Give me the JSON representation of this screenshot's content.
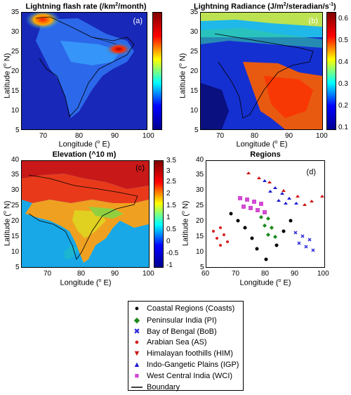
{
  "chart_data": [
    {
      "type": "heatmap",
      "title_main": "Lightning flash rate (/km",
      "title_sup": "2",
      "title_end": "/month)",
      "panel_label": "(a)",
      "xlabel": "Longitude (",
      "xlabel_sup": "o",
      "xlabel_end": " E)",
      "ylabel": "Latitude (",
      "ylabel_sup": "o",
      "ylabel_end": " N)",
      "xlim": [
        65,
        100
      ],
      "ylim": [
        5,
        35
      ],
      "xticks": [
        "70",
        "80",
        "90",
        "100"
      ],
      "yticks": [
        "5",
        "10",
        "15",
        "20",
        "25",
        "30",
        "35"
      ],
      "colorbar_ticks": [],
      "colormap": "jet"
    },
    {
      "type": "heatmap",
      "title_main": "Lightning Radiance (J/m",
      "title_sup": "2",
      "title_end": "/steradian/s",
      "title_sup2": "-1",
      "title_end2": ")",
      "panel_label": "(b)",
      "xlabel": "Longitude (",
      "xlabel_sup": "o",
      "xlabel_end": " E)",
      "ylabel": "Latitude (",
      "ylabel_sup": "o",
      "ylabel_end": " N)",
      "xlim": [
        65,
        100
      ],
      "ylim": [
        5,
        35
      ],
      "xticks": [
        "70",
        "80",
        "90",
        "100"
      ],
      "yticks": [
        "5",
        "10",
        "15",
        "20",
        "25",
        "30",
        "35"
      ],
      "colorbar_ticks": [
        "0.1",
        "0.2",
        "0.3",
        "0.4",
        "0.5",
        "0.6"
      ],
      "colormap": "jet"
    },
    {
      "type": "heatmap",
      "title_main": "Elevation (^10 m)",
      "panel_label": "(c)",
      "xlabel": "Longitude (",
      "xlabel_sup": "o",
      "xlabel_end": " E)",
      "ylabel": "Latitude (",
      "ylabel_sup": "o",
      "ylabel_end": " N)",
      "xlim": [
        62,
        100
      ],
      "ylim": [
        5,
        40
      ],
      "xticks": [
        "70",
        "80",
        "90",
        "100"
      ],
      "yticks": [
        "5",
        "10",
        "15",
        "20",
        "25",
        "30",
        "35",
        "40"
      ],
      "colorbar_ticks": [
        "-1",
        "-0.5",
        "0",
        "0.5",
        "1",
        "1.5",
        "2",
        "2.5",
        "3",
        "3.5"
      ],
      "colormap": "jet"
    },
    {
      "type": "scatter",
      "title_main": "Regions",
      "panel_label": "(d)",
      "xlabel": "Longitude (",
      "xlabel_sup": "o",
      "xlabel_end": " E)",
      "ylabel": "Latitude (",
      "ylabel_sup": "o",
      "ylabel_end": " N)",
      "xlim": [
        60,
        100
      ],
      "ylim": [
        5,
        40
      ],
      "xticks": [
        "60",
        "70",
        "80",
        "90",
        "100"
      ],
      "yticks": [
        "5",
        "10",
        "15",
        "20",
        "25",
        "30",
        "35",
        "40"
      ],
      "series": [
        {
          "name": "Coastal Regions (Coasts)",
          "marker": "●",
          "color": "#000000"
        },
        {
          "name": "Peninsular India (PI)",
          "marker": "◆",
          "color": "#1b8a1b"
        },
        {
          "name": "Bay of Bengal (BoB)",
          "marker": "✖",
          "color": "#2b2bd8"
        },
        {
          "name": "Arabian Sea (AS)",
          "marker": "●",
          "color": "#d82020"
        },
        {
          "name": "Himalayan foothills (HIM)",
          "marker": "▼",
          "color": "#cc1111"
        },
        {
          "name": "Indo-Gangetic Plains (IGP)",
          "marker": "▲",
          "color": "#1a1ad0"
        },
        {
          "name": "West Central India (WCI)",
          "marker": "■",
          "color": "#d24ad2"
        }
      ],
      "legend_boundary": "Boundary"
    }
  ]
}
